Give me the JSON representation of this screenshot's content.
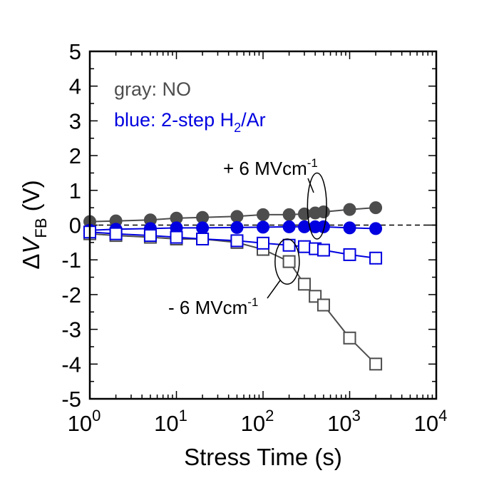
{
  "chart_data": {
    "type": "scatter",
    "xscale": "log",
    "xlim": [
      1,
      10000
    ],
    "ylim": [
      -5,
      5
    ],
    "xlabel": "Stress Time (s)",
    "ylabel": {
      "prefix": "Δ",
      "var": "V",
      "sub": "FB",
      "unit": " (V)"
    },
    "x_ticks": [
      {
        "base": "10",
        "exp": "0",
        "value": 1
      },
      {
        "base": "10",
        "exp": "1",
        "value": 10
      },
      {
        "base": "10",
        "exp": "2",
        "value": 100
      },
      {
        "base": "10",
        "exp": "3",
        "value": 1000
      },
      {
        "base": "10",
        "exp": "4",
        "value": 10000
      }
    ],
    "y_ticks": [
      "5",
      "4",
      "3",
      "2",
      "1",
      "0",
      "-1",
      "-2",
      "-3",
      "-4",
      "-5"
    ],
    "reference_line": {
      "y": 0,
      "style": "dashed"
    },
    "legend": {
      "gray": {
        "text": "gray: NO",
        "color": "#4d4d4d"
      },
      "blue": {
        "text_main": "blue: 2-step H",
        "sub": "2",
        "text_tail": "/Ar",
        "color": "#0000e0"
      }
    },
    "annotations": {
      "positive": {
        "text": "+ 6 MVcm",
        "sup": "-1"
      },
      "negative": {
        "text": "- 6 MVcm",
        "sup": "-1"
      }
    },
    "series": [
      {
        "name": "NO, +6 MVcm-1",
        "color": "#4d4d4d",
        "marker": "filled-circle",
        "x": [
          1,
          2,
          5,
          10,
          20,
          50,
          100,
          200,
          300,
          400,
          500,
          1000,
          2000
        ],
        "y": [
          0.1,
          0.12,
          0.15,
          0.2,
          0.22,
          0.25,
          0.3,
          0.3,
          0.32,
          0.35,
          0.38,
          0.45,
          0.5
        ]
      },
      {
        "name": "2-step H2/Ar, +6 MVcm-1",
        "color": "#0000e0",
        "marker": "filled-circle",
        "x": [
          1,
          2,
          5,
          10,
          20,
          50,
          100,
          200,
          300,
          400,
          500,
          1000,
          2000
        ],
        "y": [
          -0.15,
          -0.12,
          -0.1,
          -0.08,
          -0.08,
          -0.07,
          -0.06,
          -0.05,
          -0.05,
          -0.05,
          -0.05,
          -0.08,
          -0.1
        ]
      },
      {
        "name": "NO, -6 MVcm-1",
        "color": "#4d4d4d",
        "marker": "open-square",
        "x": [
          1,
          2,
          5,
          10,
          20,
          50,
          100,
          200,
          300,
          400,
          500,
          1000,
          2000
        ],
        "y": [
          -0.25,
          -0.3,
          -0.35,
          -0.4,
          -0.4,
          -0.5,
          -0.7,
          -1.05,
          -1.7,
          -2.05,
          -2.3,
          -3.25,
          -4.0
        ]
      },
      {
        "name": "2-step H2/Ar, -6 MVcm-1",
        "color": "#0000e0",
        "marker": "open-square",
        "x": [
          1,
          2,
          5,
          10,
          20,
          50,
          100,
          200,
          300,
          400,
          500,
          1000,
          2000
        ],
        "y": [
          -0.2,
          -0.25,
          -0.3,
          -0.35,
          -0.4,
          -0.45,
          -0.52,
          -0.58,
          -0.62,
          -0.68,
          -0.72,
          -0.85,
          -0.95
        ]
      }
    ],
    "highlights": [
      {
        "name": "positive-group-ellipse",
        "x_center": 420,
        "y_center": 0.55,
        "x_half_decades": 0.11,
        "y_half": 0.95
      },
      {
        "name": "negative-group-ellipse",
        "x_center": 190,
        "y_center": -1.05,
        "x_half_decades": 0.14,
        "y_half": 0.65
      }
    ]
  }
}
